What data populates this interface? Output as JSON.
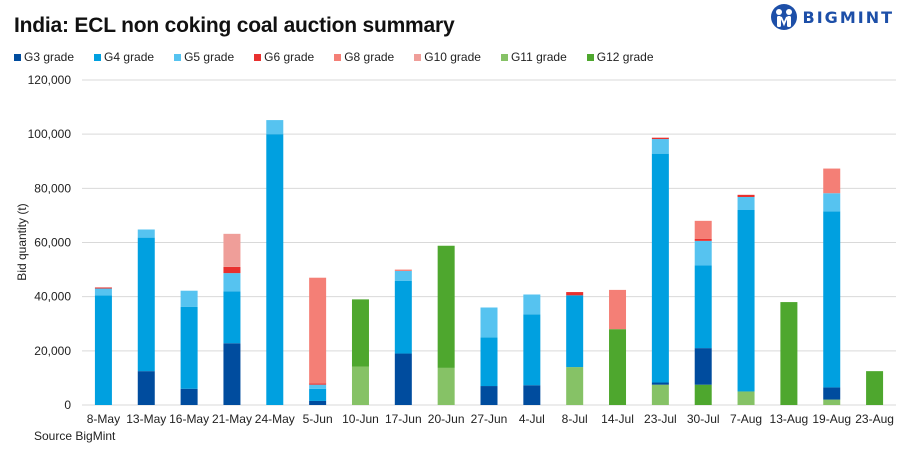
{
  "header": {
    "title": "India: ECL non coking coal auction summary",
    "logo_text": "BIGMINT"
  },
  "footer": {
    "source": "Source BigMint"
  },
  "chart_data": {
    "type": "bar",
    "stacked": true,
    "title": "India: ECL non coking coal auction summary",
    "xlabel": "",
    "ylabel": "Bid quantity (t)",
    "ylim": [
      0,
      120000
    ],
    "yticks": [
      0,
      20000,
      40000,
      60000,
      80000,
      100000,
      120000
    ],
    "ytick_labels": [
      "0",
      "20,000",
      "40,000",
      "60,000",
      "80,000",
      "100,000",
      "120,000"
    ],
    "grid": true,
    "legend_position": "top-left",
    "categories": [
      "8-May",
      "13-May",
      "16-May",
      "21-May",
      "24-May",
      "5-Jun",
      "10-Jun",
      "17-Jun",
      "20-Jun",
      "27-Jun",
      "4-Jul",
      "8-Jul",
      "14-Jul",
      "23-Jul",
      "30-Jul",
      "7-Aug",
      "13-Aug",
      "19-Aug",
      "23-Aug"
    ],
    "series": [
      {
        "name": "G11 grade",
        "color": "#86c266",
        "values": [
          0,
          0,
          0,
          0,
          0,
          0,
          14200,
          0,
          13700,
          0,
          0,
          14000,
          0,
          7500,
          0,
          5000,
          0,
          2000,
          0
        ]
      },
      {
        "name": "G12 grade",
        "color": "#4ea72e",
        "values": [
          0,
          0,
          0,
          0,
          0,
          0,
          24800,
          0,
          45100,
          0,
          0,
          0,
          28000,
          0,
          7500,
          0,
          38000,
          0,
          12500
        ]
      },
      {
        "name": "G3 grade",
        "color": "#004c9e",
        "values": [
          0,
          12500,
          6000,
          22800,
          0,
          1500,
          0,
          19000,
          0,
          7000,
          7300,
          0,
          0,
          800,
          13500,
          0,
          0,
          4500,
          0
        ]
      },
      {
        "name": "G4 grade",
        "color": "#00a0e0",
        "values": [
          40500,
          49300,
          30200,
          19200,
          100000,
          4500,
          0,
          26800,
          0,
          18000,
          26200,
          26500,
          0,
          84500,
          30500,
          67000,
          0,
          65000,
          0
        ]
      },
      {
        "name": "G5 grade",
        "color": "#56c3f0",
        "values": [
          2500,
          3000,
          6000,
          6700,
          5200,
          1500,
          0,
          3700,
          0,
          11000,
          7300,
          0,
          0,
          5400,
          9100,
          4800,
          0,
          6700,
          0
        ]
      },
      {
        "name": "G6 grade",
        "color": "#e8312f",
        "values": [
          400,
          0,
          0,
          2300,
          0,
          500,
          0,
          0,
          0,
          0,
          0,
          1200,
          0,
          500,
          700,
          800,
          0,
          0,
          0
        ]
      },
      {
        "name": "G8 grade",
        "color": "#f47f76",
        "values": [
          0,
          0,
          0,
          0,
          0,
          39000,
          0,
          500,
          0,
          0,
          0,
          0,
          14500,
          0,
          6700,
          0,
          0,
          9100,
          0
        ]
      },
      {
        "name": "G10 grade",
        "color": "#ef9e99",
        "values": [
          0,
          0,
          0,
          12200,
          0,
          0,
          0,
          0,
          0,
          0,
          0,
          0,
          0,
          0,
          0,
          0,
          0,
          0,
          0
        ]
      }
    ],
    "legend": [
      {
        "name": "G3 grade",
        "color": "#004c9e"
      },
      {
        "name": "G4 grade",
        "color": "#00a0e0"
      },
      {
        "name": "G5 grade",
        "color": "#56c3f0"
      },
      {
        "name": "G6 grade",
        "color": "#e8312f"
      },
      {
        "name": "G8 grade",
        "color": "#f47f76"
      },
      {
        "name": "G10 grade",
        "color": "#ef9e99"
      },
      {
        "name": "G11 grade",
        "color": "#86c266"
      },
      {
        "name": "G12 grade",
        "color": "#4ea72e"
      }
    ]
  }
}
